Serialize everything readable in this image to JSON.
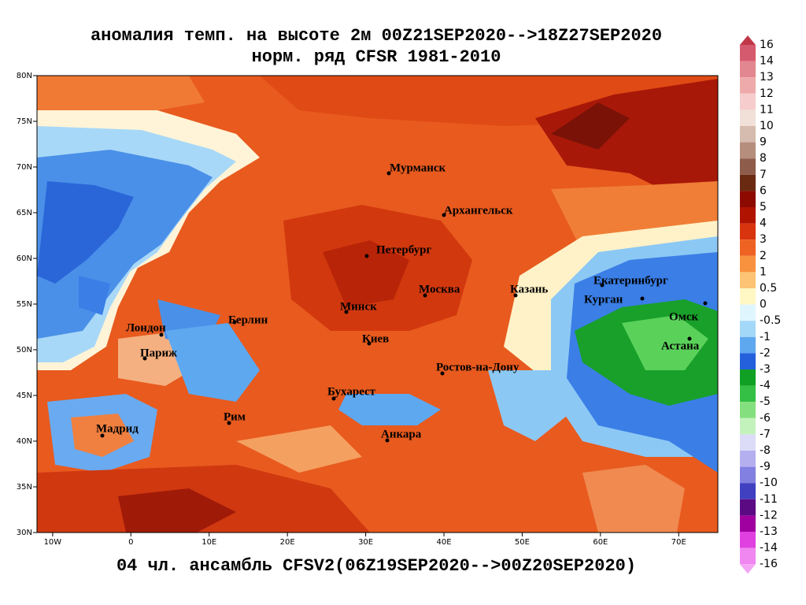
{
  "map": {
    "title": "аномалия темп. на высоте 2м 00Z21SEP2020-->18Z27SEP2020",
    "subtitle": "норм. ряд CFSR 1981-2010",
    "footer": "04 чл. ансамбль CFSV2(06Z19SEP2020-->00Z20SEP2020)",
    "xlim": [
      -12,
      75
    ],
    "ylim": [
      30,
      80
    ],
    "xticks": [
      {
        "value": -10,
        "label": "10W"
      },
      0,
      {
        "value": 10,
        "label": "10E"
      },
      {
        "value": 20,
        "label": "20E"
      },
      {
        "value": 30,
        "label": "30E"
      },
      {
        "value": 40,
        "label": "40E"
      },
      {
        "value": 50,
        "label": "50E"
      },
      {
        "value": 60,
        "label": "60E"
      },
      {
        "value": 70,
        "label": "70E"
      }
    ],
    "yticks": [
      {
        "value": 30,
        "label": "30N"
      },
      {
        "value": 35,
        "label": "35N"
      },
      {
        "value": 40,
        "label": "40N"
      },
      {
        "value": 45,
        "label": "45N"
      },
      {
        "value": 50,
        "label": "50N"
      },
      {
        "value": 55,
        "label": "55N"
      },
      {
        "value": 60,
        "label": "60N"
      },
      {
        "value": 65,
        "label": "65N"
      },
      {
        "value": 70,
        "label": "70N"
      },
      {
        "value": 75,
        "label": "75N"
      },
      {
        "value": 80,
        "label": "80N"
      }
    ],
    "cities": [
      "Мурманск",
      "Архангельск",
      "Петербург",
      "Москва",
      "Казань",
      "Екатеринбург",
      "Курган",
      "Омск",
      "Астана",
      "Минск",
      "Берлин",
      "Лондон",
      "Париж",
      "Киев",
      "Ростов-на-Дону",
      "Бухарест",
      "Рим",
      "Мадрид",
      "Анкара"
    ],
    "colorbar": {
      "levels": [
        16,
        14,
        13,
        12,
        11,
        10,
        9,
        8,
        7,
        6,
        5,
        4,
        3,
        2,
        1,
        0.5,
        0,
        -0.5,
        -1,
        -2,
        -3,
        -4,
        -5,
        -6,
        -7,
        -8,
        -9,
        -10,
        -11,
        -12,
        -13,
        -14,
        -16
      ],
      "colors": [
        "#d65a6e",
        "#e2868f",
        "#eeaaaa",
        "#f6cccc",
        "#f0e0d8",
        "#d6bcae",
        "#b68e7e",
        "#8e5c4a",
        "#6a2a12",
        "#8c0a00",
        "#b01400",
        "#d8340e",
        "#ee6222",
        "#f8923e",
        "#fcc474",
        "#fff8c4",
        "#e0f6ff",
        "#a4d8f8",
        "#5ea8f0",
        "#2460dc",
        "#10a024",
        "#34c044",
        "#84e07e",
        "#c4f2bc",
        "#dcdcf8",
        "#b4b0f0",
        "#8280e0",
        "#4040c0",
        "#5c0a84",
        "#a000a0",
        "#e040e0",
        "#f086f0"
      ],
      "low_color": "#f4a4f4",
      "high_color": "#c03848"
    }
  }
}
